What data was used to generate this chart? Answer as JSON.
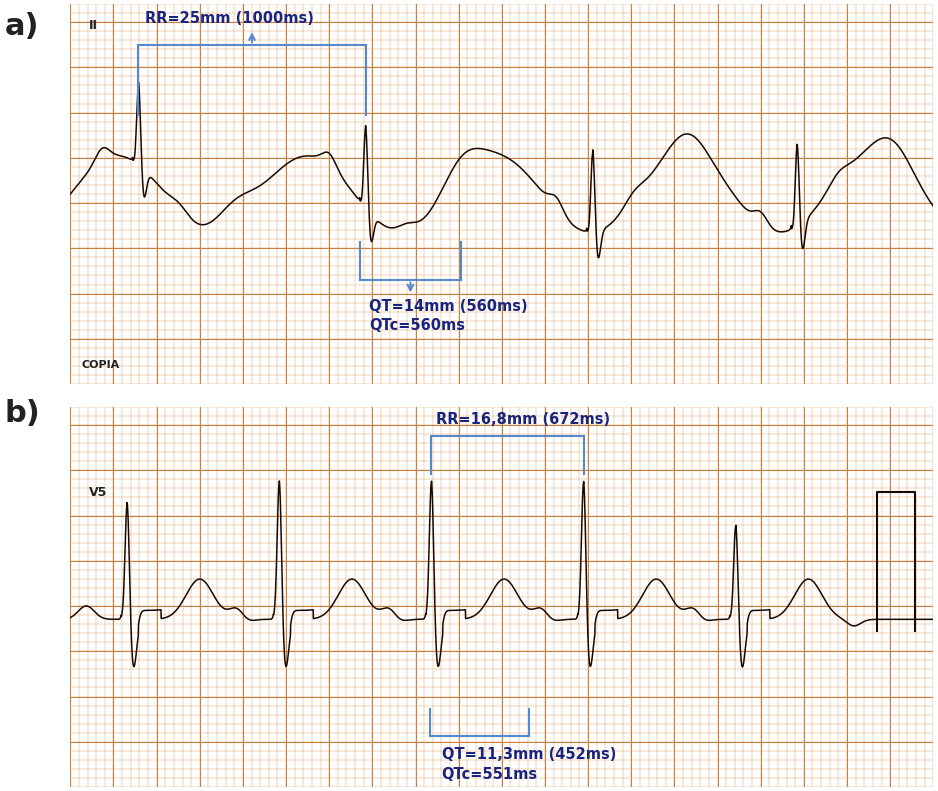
{
  "bg_color": "#f0c090",
  "grid_minor_color": "#e0a870",
  "grid_major_color": "#c88040",
  "ecg_color": "#1a0800",
  "bracket_color": "#5588cc",
  "text_color": "#1a237e",
  "label_a": "a)",
  "label_b": "b)",
  "lead_a": "II",
  "lead_b": "V5",
  "watermark_a": "COPIA",
  "rr_label_a": "RR=25mm (1000ms)",
  "qt_label_a": "QT=14mm (560ms)\nQTc=560ms",
  "rr_label_b": "RR=16,8mm (672ms)",
  "qt_label_b": "QT=11,3mm (452ms)\nQTc=551ms",
  "fig_width": 9.38,
  "fig_height": 7.91
}
